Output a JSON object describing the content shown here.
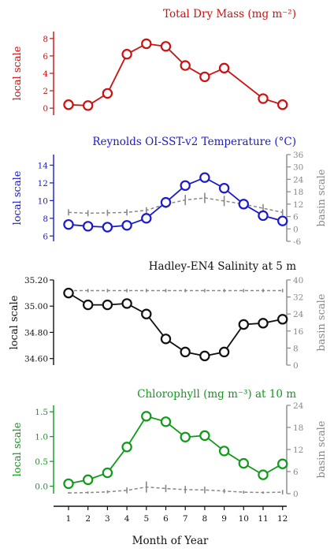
{
  "chart_data": [
    {
      "type": "line",
      "title": "Total Dry Mass (mg m⁻²)",
      "color": "#cc1111",
      "ylabel": "local scale",
      "ylim": [
        -0.8,
        8.8
      ],
      "yticks": [
        0,
        2,
        4,
        6,
        8
      ],
      "ytick_labels": [
        "0",
        "2",
        "4",
        "6",
        "8"
      ],
      "x": [
        1,
        2,
        3,
        4,
        5,
        6,
        7,
        8,
        9,
        11,
        12
      ],
      "values": [
        0.4,
        0.3,
        1.7,
        6.2,
        7.4,
        7.1,
        4.9,
        3.6,
        4.6,
        1.1,
        0.4
      ],
      "basin": null
    },
    {
      "type": "line",
      "title": "Reynolds OI-SST-v2 Temperature (°C)",
      "color": "#1a1acc",
      "ylabel": "local scale",
      "ylim": [
        5.4,
        15.2
      ],
      "yticks": [
        6,
        8,
        10,
        12,
        14
      ],
      "ytick_labels": [
        "6",
        "8",
        "10",
        "12",
        "14"
      ],
      "x": [
        1,
        2,
        3,
        4,
        5,
        6,
        7,
        8,
        9,
        10,
        11,
        12
      ],
      "values": [
        7.3,
        7.1,
        7.0,
        7.2,
        8.0,
        9.8,
        11.7,
        12.6,
        11.4,
        9.6,
        8.3,
        7.7
      ],
      "basin": {
        "ylabel": "basin scale",
        "ylim": [
          -6,
          36
        ],
        "yticks": [
          -6,
          0,
          6,
          12,
          18,
          24,
          30,
          36
        ],
        "ytick_labels": [
          "-6",
          "0",
          "6",
          "12",
          "18",
          "24",
          "30",
          "36"
        ],
        "values": [
          8,
          7.6,
          7.8,
          8,
          9,
          12,
          14,
          15,
          13.5,
          12,
          10,
          8
        ],
        "errors": [
          1.5,
          1.5,
          1.5,
          1.5,
          1.5,
          2,
          2.5,
          2.5,
          2.5,
          2,
          2,
          1.5
        ]
      }
    },
    {
      "type": "line",
      "title": "Hadley-EN4 Salinity at 5 m",
      "color": "#111111",
      "ylabel": "local scale",
      "ylim": [
        34.55,
        35.2
      ],
      "yticks": [
        34.6,
        34.8,
        35.0,
        35.2
      ],
      "ytick_labels": [
        "34.60",
        "34.80",
        "35.00",
        "35.20"
      ],
      "x": [
        1,
        2,
        3,
        4,
        5,
        6,
        7,
        8,
        9,
        10,
        11,
        12
      ],
      "values": [
        35.1,
        35.01,
        35.01,
        35.02,
        34.94,
        34.75,
        34.65,
        34.62,
        34.65,
        34.86,
        34.87,
        34.9
      ],
      "basin": {
        "ylabel": "basin scale",
        "ylim": [
          0,
          40
        ],
        "yticks": [
          0,
          8,
          16,
          24,
          32,
          40
        ],
        "ytick_labels": [
          "0",
          "8",
          "16",
          "24",
          "32",
          "40"
        ],
        "values": [
          35,
          35,
          35,
          35,
          35,
          35,
          35,
          35,
          35,
          35,
          35,
          35
        ],
        "errors": [
          0.8,
          0.8,
          0.8,
          0.8,
          0.8,
          0.8,
          0.8,
          0.8,
          0.8,
          0.8,
          0.8,
          0.8
        ]
      }
    },
    {
      "type": "line",
      "title": "Chlorophyll (mg m⁻³) at 10 m",
      "color": "#11991a",
      "ylabel": "local scale",
      "ylim": [
        -0.15,
        1.63
      ],
      "yticks": [
        0.0,
        0.5,
        1.0,
        1.5
      ],
      "ytick_labels": [
        "0.0",
        "0.5",
        "1.0",
        "1.5"
      ],
      "x": [
        1,
        2,
        3,
        4,
        5,
        6,
        7,
        8,
        9,
        10,
        11,
        12
      ],
      "values": [
        0.05,
        0.13,
        0.27,
        0.79,
        1.41,
        1.3,
        0.99,
        1.02,
        0.71,
        0.46,
        0.23,
        0.45
      ],
      "basin": {
        "ylabel": "basin scale",
        "ylim": [
          0,
          24
        ],
        "yticks": [
          0,
          6,
          12,
          18,
          24
        ],
        "ytick_labels": [
          "0",
          "6",
          "12",
          "18",
          "24"
        ],
        "values": [
          0.2,
          0.3,
          0.5,
          0.9,
          1.8,
          1.4,
          1.1,
          1.0,
          0.7,
          0.4,
          0.3,
          0.4
        ],
        "errors": [
          0.2,
          0.3,
          0.4,
          0.8,
          1.5,
          1.0,
          1.0,
          0.9,
          0.6,
          0.4,
          0.3,
          0.6
        ]
      }
    }
  ],
  "xaxis": {
    "label": "Month of Year",
    "ticks": [
      1,
      2,
      3,
      4,
      5,
      6,
      7,
      8,
      9,
      10,
      11,
      12
    ],
    "tick_labels": [
      "1",
      "2",
      "3",
      "4",
      "5",
      "6",
      "7",
      "8",
      "9",
      "10",
      "11",
      "12"
    ]
  },
  "basin_color": "#888888"
}
